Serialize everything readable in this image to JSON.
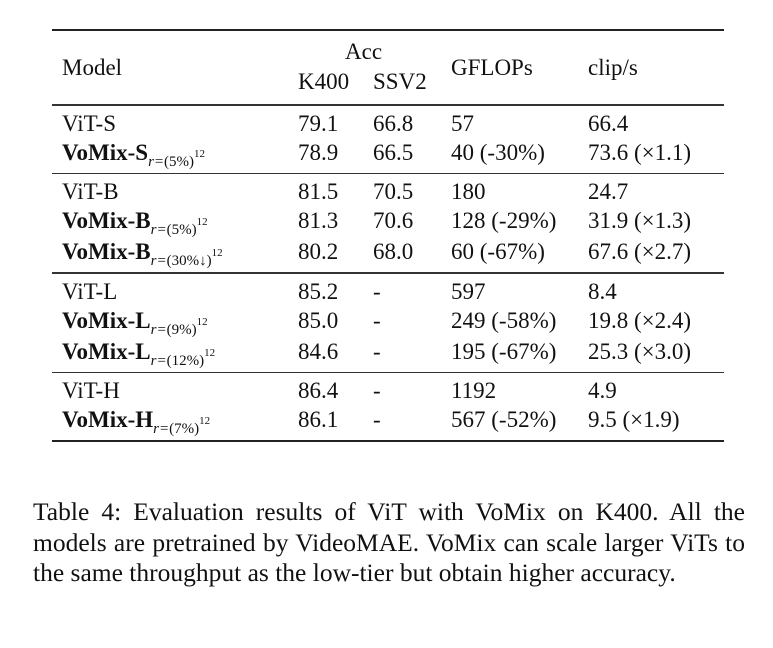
{
  "header": {
    "model": "Model",
    "acc": "Acc",
    "k400": "K400",
    "ssv2": "SSV2",
    "gflops": "GFLOPs",
    "clips": "clip/s"
  },
  "groups": [
    {
      "rows": [
        {
          "name": "ViT-S",
          "k400": "79.1",
          "ssv2": "66.8",
          "gflops": "57",
          "clips": "66.4"
        },
        {
          "name": "VoMix-S",
          "bold": true,
          "ratio": "(5%)",
          "exp": "12",
          "k400": "78.9",
          "ssv2": "66.5",
          "gflops": "40 (-30%)",
          "clips": "73.6 (×1.1)"
        }
      ]
    },
    {
      "rows": [
        {
          "name": "ViT-B",
          "k400": "81.5",
          "ssv2": "70.5",
          "gflops": "180",
          "clips": "24.7"
        },
        {
          "name": "VoMix-B",
          "bold": true,
          "ratio": "(5%)",
          "exp": "12",
          "k400": "81.3",
          "ssv2": "70.6",
          "gflops": "128 (-29%)",
          "clips": "31.9 (×1.3)"
        },
        {
          "name": "VoMix-B",
          "bold": true,
          "ratio": "(30%↓)",
          "exp": "12",
          "k400": "80.2",
          "ssv2": "68.0",
          "gflops": "60 (-67%)",
          "clips": "67.6 (×2.7)"
        }
      ]
    },
    {
      "rows": [
        {
          "name": "ViT-L",
          "k400": "85.2",
          "ssv2": "-",
          "gflops": "597",
          "clips": "8.4"
        },
        {
          "name": "VoMix-L",
          "bold": true,
          "ratio": "(9%)",
          "exp": "12",
          "k400": "85.0",
          "ssv2": "-",
          "gflops": "249 (-58%)",
          "clips": "19.8 (×2.4)"
        },
        {
          "name": "VoMix-L",
          "bold": true,
          "ratio": "(12%)",
          "exp": "12",
          "k400": "84.6",
          "ssv2": "-",
          "gflops": "195 (-67%)",
          "clips": "25.3 (×3.0)"
        }
      ]
    },
    {
      "rows": [
        {
          "name": "ViT-H",
          "k400": "86.4",
          "ssv2": "-",
          "gflops": "1192",
          "clips": "4.9"
        },
        {
          "name": "VoMix-H",
          "bold": true,
          "ratio": "(7%)",
          "exp": "12",
          "k400": "86.1",
          "ssv2": "-",
          "gflops": "567 (-52%)",
          "clips": "9.5 (×1.9)"
        }
      ]
    }
  ],
  "sub_var": "r=",
  "caption": "Table 4: Evaluation results of ViT with VoMix on K400. All the models are pretrained by VideoMAE. VoMix can scale larger ViTs to the same throughput as the low-tier but obtain higher accuracy."
}
